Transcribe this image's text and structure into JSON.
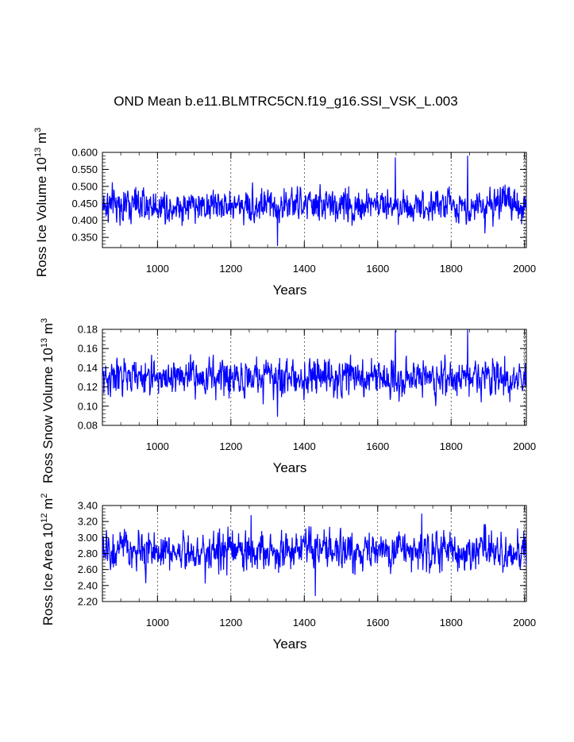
{
  "title": "OND Mean b.e11.BLMTRC5CN.f19_g16.SSI_VSK_L.003",
  "chart_data": [
    {
      "type": "line",
      "ylabel_main": "Ross Ice Volume 10",
      "ylabel_exp": "13",
      "ylabel_unit": " m",
      "ylabel_unit_exp": "3",
      "xlabel": "Years",
      "xlim": [
        850,
        2005
      ],
      "ylim": [
        0.32,
        0.6
      ],
      "yticks": [
        "0.600",
        "0.550",
        "0.500",
        "0.450",
        "0.400",
        "0.350"
      ],
      "ytick_values": [
        0.6,
        0.55,
        0.5,
        0.45,
        0.4,
        0.35
      ],
      "xticks": [
        "1000",
        "1200",
        "1400",
        "1600",
        "1800",
        "2000"
      ],
      "xtick_values": [
        1000,
        1200,
        1400,
        1600,
        1800,
        2000
      ],
      "series": [
        {
          "name": "Ross Ice Volume",
          "color": "#0000ff",
          "mean": 0.445,
          "sd": 0.035,
          "x": [
            850,
            2005
          ],
          "min": 0.325,
          "max": 0.59,
          "min_at": 1327,
          "max_at": 1845,
          "max2": 0.585,
          "max2_at": 1648
        }
      ]
    },
    {
      "type": "line",
      "ylabel_main": "Ross Snow Volume 10",
      "ylabel_exp": "13",
      "ylabel_unit": " m",
      "ylabel_unit_exp": "3",
      "xlabel": "Years",
      "xlim": [
        850,
        2005
      ],
      "ylim": [
        0.08,
        0.18
      ],
      "yticks": [
        "0.18",
        "0.16",
        "0.14",
        "0.12",
        "0.10",
        "0.08"
      ],
      "ytick_values": [
        0.18,
        0.16,
        0.14,
        0.12,
        0.1,
        0.08
      ],
      "xticks": [
        "1000",
        "1200",
        "1400",
        "1600",
        "1800",
        "2000"
      ],
      "xtick_values": [
        1000,
        1200,
        1400,
        1600,
        1800,
        2000
      ],
      "series": [
        {
          "name": "Ross Snow Volume",
          "color": "#0000ff",
          "mean": 0.13,
          "sd": 0.013,
          "x": [
            850,
            2005
          ],
          "min": 0.089,
          "max": 0.18,
          "min_at": 1327,
          "max_at": 1845,
          "max2": 0.179,
          "max2_at": 1648
        }
      ]
    },
    {
      "type": "line",
      "ylabel_main": "Ross Ice Area 10",
      "ylabel_exp": "12",
      "ylabel_unit": " m",
      "ylabel_unit_exp": "2",
      "xlabel": "Years",
      "xlim": [
        850,
        2005
      ],
      "ylim": [
        2.2,
        3.4
      ],
      "yticks": [
        "3.40",
        "3.20",
        "3.00",
        "2.80",
        "2.60",
        "2.40",
        "2.20"
      ],
      "ytick_values": [
        3.4,
        3.2,
        3.0,
        2.8,
        2.6,
        2.4,
        2.2
      ],
      "xticks": [
        "1000",
        "1200",
        "1400",
        "1600",
        "1800",
        "2000"
      ],
      "xtick_values": [
        1000,
        1200,
        1400,
        1600,
        1800,
        2000
      ],
      "series": [
        {
          "name": "Ross Ice Area",
          "color": "#0000ff",
          "mean": 2.83,
          "sd": 0.17,
          "x": [
            850,
            2005
          ],
          "min": 2.27,
          "max": 3.3,
          "min_at": 1430,
          "max_at": 1720,
          "max2": 3.28,
          "max2_at": 1255
        }
      ]
    }
  ]
}
